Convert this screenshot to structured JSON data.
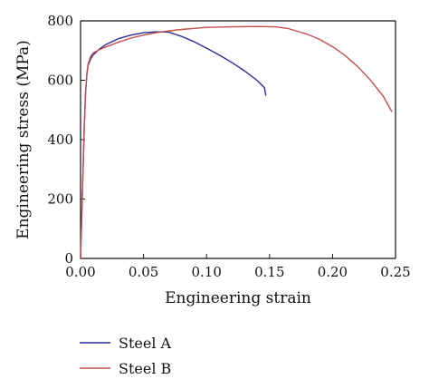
{
  "chart_data": {
    "type": "line",
    "xlabel": "Engineering strain",
    "ylabel": "Engineering stress (MPa)",
    "xlim": [
      0.0,
      0.25
    ],
    "ylim": [
      0,
      800
    ],
    "xticks": [
      0.0,
      0.05,
      0.1,
      0.15,
      0.2,
      0.25
    ],
    "xtick_labels": [
      "0.00",
      "0.05",
      "0.10",
      "0.15",
      "0.20",
      "0.25"
    ],
    "yticks": [
      0,
      200,
      400,
      600,
      800
    ],
    "ytick_labels": [
      "0",
      "200",
      "400",
      "600",
      "800"
    ],
    "grid": false,
    "legend_position": "bottom-left, below plot",
    "series": [
      {
        "name": "Steel A",
        "color": "#2e2e9a",
        "x": [
          0.0,
          0.002,
          0.003,
          0.004,
          0.005,
          0.006,
          0.008,
          0.01,
          0.015,
          0.02,
          0.03,
          0.04,
          0.05,
          0.06,
          0.07,
          0.08,
          0.09,
          0.1,
          0.11,
          0.12,
          0.13,
          0.14,
          0.146,
          0.147
        ],
        "y": [
          0,
          300,
          450,
          560,
          620,
          650,
          672,
          685,
          705,
          720,
          740,
          752,
          760,
          763,
          762,
          748,
          730,
          708,
          685,
          660,
          632,
          600,
          575,
          550
        ]
      },
      {
        "name": "Steel B",
        "color": "#c0504d",
        "x": [
          0.0,
          0.002,
          0.003,
          0.004,
          0.005,
          0.006,
          0.008,
          0.01,
          0.015,
          0.02,
          0.03,
          0.04,
          0.05,
          0.06,
          0.07,
          0.08,
          0.1,
          0.12,
          0.14,
          0.155,
          0.165,
          0.18,
          0.19,
          0.2,
          0.21,
          0.22,
          0.23,
          0.24,
          0.247
        ],
        "y": [
          0,
          300,
          450,
          560,
          620,
          655,
          680,
          692,
          703,
          712,
          728,
          742,
          752,
          760,
          766,
          771,
          778,
          780,
          781,
          780,
          774,
          755,
          737,
          713,
          683,
          646,
          601,
          548,
          495
        ]
      }
    ]
  }
}
